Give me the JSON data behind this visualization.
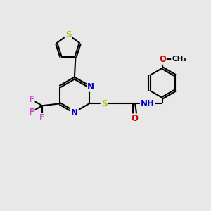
{
  "bg_color": "#e8e8e8",
  "bond_color": "#000000",
  "bond_lw": 1.5,
  "atom_colors": {
    "S": "#b8b800",
    "N": "#0000cc",
    "O": "#cc0000",
    "F": "#cc44cc",
    "C": "#000000",
    "H": "#444444"
  },
  "font_size": 8.5,
  "figsize": [
    3.0,
    3.0
  ],
  "dpi": 100
}
